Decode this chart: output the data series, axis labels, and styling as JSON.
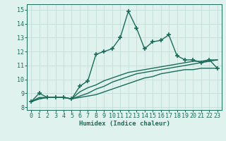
{
  "xlabel": "Humidex (Indice chaleur)",
  "bg_color": "#dff2ee",
  "grid_color": "#c4ddd8",
  "line_color": "#1a6b5a",
  "xlim": [
    -0.5,
    23.5
  ],
  "ylim": [
    7.8,
    15.4
  ],
  "yticks": [
    8,
    9,
    10,
    11,
    12,
    13,
    14,
    15
  ],
  "xticks": [
    0,
    1,
    2,
    3,
    4,
    5,
    6,
    7,
    8,
    9,
    10,
    11,
    12,
    13,
    14,
    15,
    16,
    17,
    18,
    19,
    20,
    21,
    22,
    23
  ],
  "main_x": [
    0,
    1,
    2,
    3,
    4,
    5,
    6,
    7,
    8,
    9,
    10,
    11,
    12,
    13,
    14,
    15,
    16,
    17,
    18,
    19,
    20,
    21,
    22,
    23
  ],
  "main_y": [
    8.4,
    9.0,
    8.7,
    8.7,
    8.7,
    8.6,
    9.5,
    9.9,
    11.8,
    12.0,
    12.2,
    13.0,
    14.9,
    13.7,
    12.2,
    12.7,
    12.8,
    13.2,
    11.7,
    11.4,
    11.4,
    11.2,
    11.4,
    10.8
  ],
  "line2_x": [
    0,
    1,
    2,
    3,
    4,
    5,
    6,
    7,
    8,
    9,
    10,
    11,
    12,
    13,
    14,
    15,
    16,
    17,
    18,
    19,
    20,
    21,
    22,
    23
  ],
  "line2_y": [
    8.4,
    8.6,
    8.7,
    8.7,
    8.7,
    8.6,
    8.7,
    8.8,
    8.9,
    9.1,
    9.3,
    9.5,
    9.7,
    9.9,
    10.1,
    10.2,
    10.4,
    10.5,
    10.6,
    10.7,
    10.7,
    10.8,
    10.8,
    10.8
  ],
  "line3_x": [
    0,
    1,
    2,
    3,
    4,
    5,
    6,
    7,
    8,
    9,
    10,
    11,
    12,
    13,
    14,
    15,
    16,
    17,
    18,
    19,
    20,
    21,
    22,
    23
  ],
  "line3_y": [
    8.4,
    8.6,
    8.7,
    8.7,
    8.7,
    8.6,
    8.8,
    9.0,
    9.3,
    9.5,
    9.8,
    10.0,
    10.2,
    10.4,
    10.5,
    10.6,
    10.7,
    10.8,
    10.9,
    11.0,
    11.1,
    11.2,
    11.3,
    11.4
  ],
  "line4_x": [
    0,
    1,
    2,
    3,
    4,
    5,
    6,
    7,
    8,
    9,
    10,
    11,
    12,
    13,
    14,
    15,
    16,
    17,
    18,
    19,
    20,
    21,
    22,
    23
  ],
  "line4_y": [
    8.4,
    8.7,
    8.7,
    8.7,
    8.7,
    8.6,
    9.1,
    9.4,
    9.6,
    9.9,
    10.1,
    10.3,
    10.5,
    10.6,
    10.7,
    10.8,
    10.9,
    11.0,
    11.1,
    11.2,
    11.3,
    11.3,
    11.4,
    11.4
  ],
  "marker": "+",
  "markersize": 4.0,
  "linewidth": 1.0
}
